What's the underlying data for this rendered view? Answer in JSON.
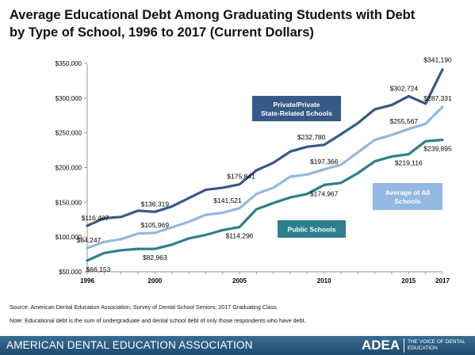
{
  "title_lines": [
    "Average Educational Debt Among Graduating Students with Debt",
    "by Type of School, 1996 to 2017 (Current Dollars)"
  ],
  "source": "Source: American Dental Education Association, Survey of Dental School Seniors, 2017 Graduating Class",
  "note": "Note: Educational debt is the sum of undergraduate and dental school debt of only those respondents who have debt.",
  "footer": {
    "org_name": "AMERICAN DENTAL EDUCATION ASSOCIATION",
    "brand": "ADEA",
    "tagline": "THE VOICE OF DENTAL EDUCATION"
  },
  "colors": {
    "private": "#355a86",
    "average": "#93b8e2",
    "public": "#2e7f8c",
    "axis": "#9a9a9a",
    "private_label_bg": "#355a86",
    "average_label_bg": "#93b8e2",
    "public_label_bg": "#2e7f8c",
    "footer_bg": "#2b5b82"
  },
  "chart_data": {
    "type": "line",
    "ylim": [
      50000,
      350000
    ],
    "xlim": [
      1996,
      2017
    ],
    "y_ticks": [
      {
        "value": 50000,
        "label": "$50,000"
      },
      {
        "value": 100000,
        "label": "$100,000"
      },
      {
        "value": 150000,
        "label": "$150,000"
      },
      {
        "value": 200000,
        "label": "$200,000"
      },
      {
        "value": 250000,
        "label": "$250,000"
      },
      {
        "value": 300000,
        "label": "$300,000"
      },
      {
        "value": 350000,
        "label": "$350,000"
      }
    ],
    "x_ticks": [
      {
        "value": 1996,
        "label": "1996"
      },
      {
        "value": 2000,
        "label": "2000"
      },
      {
        "value": 2005,
        "label": "2005"
      },
      {
        "value": 2010,
        "label": "2010"
      },
      {
        "value": 2015,
        "label": "2015"
      },
      {
        "value": 2017,
        "label": "2017"
      }
    ],
    "x": [
      1996,
      1997,
      1998,
      1999,
      2000,
      2001,
      2002,
      2003,
      2004,
      2005,
      2006,
      2007,
      2008,
      2009,
      2010,
      2011,
      2012,
      2013,
      2014,
      2015,
      2016,
      2017
    ],
    "series": [
      {
        "name": "Private/Private State-Related Schools",
        "key": "private",
        "values": [
          116407,
          127000,
          129000,
          138000,
          136319,
          144000,
          156000,
          168000,
          171000,
          175841,
          196000,
          207000,
          223000,
          230000,
          232780,
          248000,
          264000,
          284000,
          290000,
          302724,
          292000,
          341190
        ]
      },
      {
        "name": "Average of All Schools",
        "key": "average",
        "values": [
          84247,
          93000,
          97000,
          105000,
          105969,
          114000,
          122000,
          132000,
          135000,
          141521,
          162000,
          171000,
          187000,
          190000,
          197366,
          204000,
          222000,
          240000,
          247000,
          255567,
          263000,
          287331
        ]
      },
      {
        "name": "Public Schools",
        "key": "public",
        "values": [
          66153,
          77000,
          81000,
          83000,
          82963,
          89000,
          98000,
          103000,
          110000,
          114296,
          140000,
          149000,
          157000,
          162000,
          174967,
          178000,
          192000,
          209000,
          216000,
          219116,
          238000,
          239895
        ]
      }
    ],
    "data_labels": [
      {
        "series": "private",
        "x": 1996,
        "value": 116407,
        "text": "$116,407"
      },
      {
        "series": "private",
        "x": 2000,
        "value": 136319,
        "text": "$136,319"
      },
      {
        "series": "private",
        "x": 2005,
        "value": 175841,
        "text": "$175,841"
      },
      {
        "series": "private",
        "x": 2010,
        "value": 232780,
        "text": "$232,780"
      },
      {
        "series": "private",
        "x": 2015,
        "value": 302724,
        "text": "$302,724"
      },
      {
        "series": "private",
        "x": 2017,
        "value": 341190,
        "text": "$341,190"
      },
      {
        "series": "average",
        "x": 1996,
        "value": 84247,
        "text": "$84,247"
      },
      {
        "series": "average",
        "x": 2000,
        "value": 105969,
        "text": "$105,969"
      },
      {
        "series": "average",
        "x": 2005,
        "value": 141521,
        "text": "$141,521"
      },
      {
        "series": "average",
        "x": 2010,
        "value": 197366,
        "text": "$197,366"
      },
      {
        "series": "average",
        "x": 2015,
        "value": 255567,
        "text": "$255,567"
      },
      {
        "series": "average",
        "x": 2017,
        "value": 287331,
        "text": "$287,331"
      },
      {
        "series": "public",
        "x": 1996,
        "value": 66153,
        "text": "$66,153"
      },
      {
        "series": "public",
        "x": 2000,
        "value": 82963,
        "text": "$82,963"
      },
      {
        "series": "public",
        "x": 2005,
        "value": 114296,
        "text": "$114,296"
      },
      {
        "series": "public",
        "x": 2010,
        "value": 174967,
        "text": "$174,967"
      },
      {
        "series": "public",
        "x": 2015,
        "value": 219116,
        "text": "$219,116"
      },
      {
        "series": "public",
        "x": 2017,
        "value": 239895,
        "text": "$239,895"
      }
    ],
    "series_labels": [
      {
        "series": "private",
        "lines": [
          "Private/Private",
          "State-Related Schools"
        ]
      },
      {
        "series": "average",
        "lines": [
          "Average of All",
          "Schools"
        ]
      },
      {
        "series": "public",
        "lines": [
          "Public Schools"
        ]
      }
    ]
  }
}
